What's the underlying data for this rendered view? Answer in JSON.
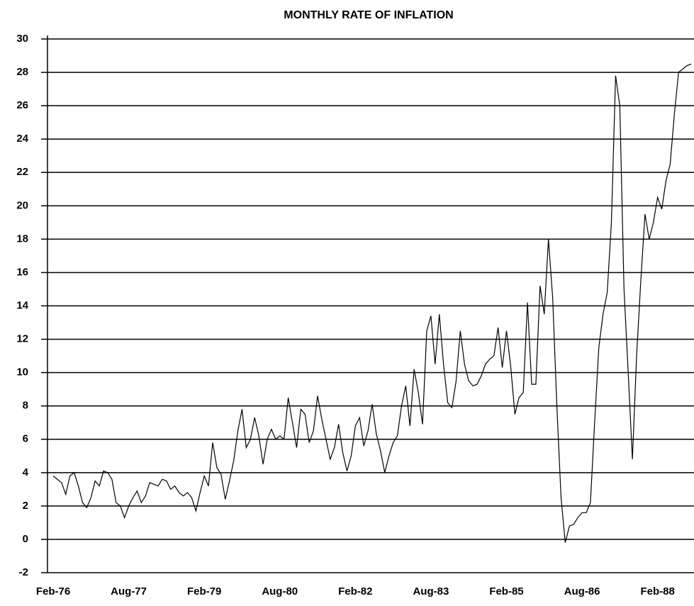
{
  "chart_data": {
    "type": "line",
    "title": "MONTHLY RATE OF INFLATION",
    "categories": [
      "Feb-76",
      null,
      null,
      null,
      null,
      null,
      null,
      null,
      null,
      null,
      null,
      null,
      null,
      null,
      null,
      null,
      null,
      null,
      "Aug-77",
      null,
      null,
      null,
      null,
      null,
      null,
      null,
      null,
      null,
      null,
      null,
      null,
      null,
      null,
      null,
      null,
      null,
      "Feb-79",
      null,
      null,
      null,
      null,
      null,
      null,
      null,
      null,
      null,
      null,
      null,
      null,
      null,
      null,
      null,
      null,
      null,
      "Aug-80",
      null,
      null,
      null,
      null,
      null,
      null,
      null,
      null,
      null,
      null,
      null,
      null,
      null,
      null,
      null,
      null,
      null,
      "Feb-82",
      null,
      null,
      null,
      null,
      null,
      null,
      null,
      null,
      null,
      null,
      null,
      null,
      null,
      null,
      null,
      null,
      null,
      "Aug-83",
      null,
      null,
      null,
      null,
      null,
      null,
      null,
      null,
      null,
      null,
      null,
      null,
      null,
      null,
      null,
      null,
      null,
      "Feb-85",
      null,
      null,
      null,
      null,
      null,
      null,
      null,
      null,
      null,
      null,
      null,
      null,
      null,
      null,
      null,
      null,
      null,
      "Aug-86",
      null,
      null,
      null,
      null,
      null,
      null,
      null,
      null,
      null,
      null,
      null,
      null,
      null,
      null,
      null,
      null,
      null,
      "Feb-88",
      null,
      null,
      null,
      null,
      null,
      null,
      null,
      null
    ],
    "values": [
      3.8,
      3.6,
      3.4,
      2.7,
      3.8,
      4.0,
      3.2,
      2.2,
      1.9,
      2.5,
      3.5,
      3.2,
      4.1,
      4.0,
      3.6,
      2.2,
      2.0,
      1.3,
      2.0,
      2.5,
      2.9,
      2.2,
      2.6,
      3.4,
      3.3,
      3.2,
      3.6,
      3.5,
      3.0,
      3.2,
      2.8,
      2.6,
      2.8,
      2.5,
      1.7,
      2.8,
      3.8,
      3.2,
      5.8,
      4.3,
      3.9,
      2.4,
      3.5,
      4.7,
      6.5,
      7.8,
      5.5,
      6.0,
      7.3,
      6.2,
      4.5,
      6.0,
      6.6,
      6.0,
      6.2,
      6.0,
      8.5,
      7.0,
      5.5,
      7.8,
      7.5,
      5.8,
      6.5,
      8.6,
      7.2,
      6.0,
      4.8,
      5.5,
      6.9,
      5.2,
      4.1,
      5.0,
      6.8,
      7.3,
      5.6,
      6.5,
      8.1,
      6.3,
      5.3,
      4.0,
      5.0,
      5.8,
      6.2,
      8.0,
      9.2,
      6.8,
      10.2,
      8.8,
      6.9,
      12.5,
      13.4,
      10.5,
      13.5,
      10.5,
      8.2,
      7.9,
      9.5,
      12.5,
      10.5,
      9.5,
      9.2,
      9.3,
      9.8,
      10.5,
      10.8,
      11.0,
      12.7,
      10.3,
      12.5,
      10.4,
      7.5,
      8.5,
      8.8,
      14.2,
      9.3,
      9.3,
      15.2,
      13.5,
      18.0,
      14.5,
      8.0,
      2.5,
      -0.2,
      0.8,
      0.9,
      1.3,
      1.6,
      1.6,
      2.2,
      7.0,
      11.5,
      13.5,
      14.8,
      19.0,
      27.8,
      26.0,
      15.0,
      10.0,
      4.8,
      11.0,
      15.5,
      19.5,
      18.0,
      19.0,
      20.5,
      19.8,
      21.5,
      22.5,
      25.5,
      28.0,
      28.2,
      28.4,
      28.5
    ],
    "color": "#000000",
    "ylim": [
      -2,
      30
    ],
    "yticks": [
      -2,
      0,
      2,
      4,
      6,
      8,
      10,
      12,
      14,
      16,
      18,
      20,
      22,
      24,
      26,
      28,
      30
    ],
    "grid": true
  }
}
